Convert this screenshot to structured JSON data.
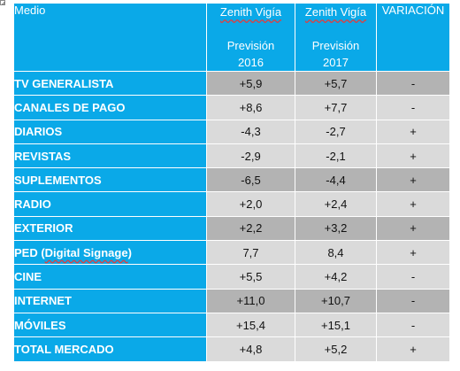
{
  "header": {
    "medio": "Medio",
    "source_2016": "Zenith Vigía",
    "label_2016": "Previsión",
    "year_2016": "2016",
    "source_2017": "Zenith Vigía",
    "label_2017": "Previsión",
    "year_2017": "2017",
    "variacion": "VARIACIÓN"
  },
  "rows": [
    {
      "medio": "TV GENERALISTA",
      "v2016": "+5,9",
      "v2017": "+5,7",
      "var": "-",
      "shade": "dark"
    },
    {
      "medio": "CANALES DE PAGO",
      "v2016": "+8,6",
      "v2017": "+7,7",
      "var": "-",
      "shade": "light"
    },
    {
      "medio": "DIARIOS",
      "v2016": "-4,3",
      "v2017": "-2,7",
      "var": "+",
      "shade": "light"
    },
    {
      "medio": "REVISTAS",
      "v2016": "-2,9",
      "v2017": "-2,1",
      "var": "+",
      "shade": "light"
    },
    {
      "medio": "SUPLEMENTOS",
      "v2016": "-6,5",
      "v2017": "-4,4",
      "var": "+",
      "shade": "dark"
    },
    {
      "medio": "RADIO",
      "v2016": "+2,0",
      "v2017": "+2,4",
      "var": "+",
      "shade": "light"
    },
    {
      "medio": "EXTERIOR",
      "v2016": "+2,2",
      "v2017": "+3,2",
      "var": "+",
      "shade": "dark"
    },
    {
      "medio": "PED (Digital Signage)",
      "v2016": "7,7",
      "v2017": "8,4",
      "var": "+",
      "shade": "light"
    },
    {
      "medio": "CINE",
      "v2016": "+5,5",
      "v2017": "+4,2",
      "var": "-",
      "shade": "light"
    },
    {
      "medio": "INTERNET",
      "v2016": "+11,0",
      "v2017": "+10,7",
      "var": "-",
      "shade": "dark"
    },
    {
      "medio": "MÓVILES",
      "v2016": "+15,4",
      "v2017": "+15,1",
      "var": "-",
      "shade": "light"
    },
    {
      "medio": "TOTAL MERCADO",
      "v2016": "+4,8",
      "v2017": "+5,2",
      "var": "+",
      "shade": "light"
    }
  ],
  "colors": {
    "header_blue": "#0aa9e8",
    "cell_light": "#dadada",
    "cell_dark": "#b3b3b3"
  }
}
